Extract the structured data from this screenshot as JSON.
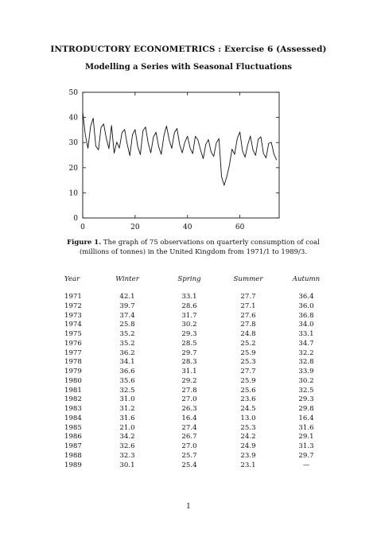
{
  "document": {
    "title": "INTRODUCTORY ECONOMETRICS : Exercise 6 (Assessed)",
    "subtitle": "Modelling a Series with Seasonal Fluctuations",
    "figure_label": "Figure 1.",
    "caption": "The graph of 75 observations on quarterly consumption of coal (millions of tonnes) in the United Kingdom from 1971/1 to 1989/3.",
    "page_number": "1"
  },
  "chart_data": {
    "type": "line",
    "title": "",
    "xlabel": "",
    "ylabel": "",
    "xlim": [
      0,
      75
    ],
    "ylim": [
      0,
      50
    ],
    "x_ticks": [
      "0",
      "20",
      "40",
      "60"
    ],
    "y_ticks": [
      "0",
      "10",
      "20",
      "30",
      "40",
      "50"
    ],
    "grid": false,
    "series": [
      {
        "values": [
          42.1,
          33.1,
          27.7,
          36.4,
          39.7,
          28.6,
          27.1,
          36.0,
          37.4,
          31.7,
          27.6,
          36.8,
          25.8,
          30.2,
          27.8,
          34.0,
          35.2,
          29.3,
          24.8,
          33.1,
          35.2,
          28.5,
          25.2,
          34.7,
          36.2,
          29.7,
          25.9,
          32.2,
          34.1,
          28.3,
          25.3,
          32.8,
          36.6,
          31.1,
          27.7,
          33.9,
          35.6,
          29.2,
          25.9,
          30.2,
          32.5,
          27.8,
          25.6,
          32.5,
          31.0,
          27.0,
          23.6,
          29.3,
          31.2,
          26.3,
          24.5,
          29.8,
          31.6,
          16.4,
          13.0,
          16.4,
          21.0,
          27.4,
          25.3,
          31.6,
          34.2,
          26.7,
          24.2,
          29.1,
          32.6,
          27.0,
          24.9,
          31.3,
          32.3,
          25.7,
          23.9,
          29.7,
          30.1,
          25.4,
          23.1
        ]
      }
    ]
  },
  "table": {
    "headers": [
      "Year",
      "Winter",
      "Spring",
      "Summer",
      "Autumn"
    ],
    "rows": [
      [
        "1971",
        "42.1",
        "33.1",
        "27.7",
        "36.4"
      ],
      [
        "1972",
        "39.7",
        "28.6",
        "27.1",
        "36.0"
      ],
      [
        "1973",
        "37.4",
        "31.7",
        "27.6",
        "36.8"
      ],
      [
        "1974",
        "25.8",
        "30.2",
        "27.8",
        "34.0"
      ],
      [
        "1975",
        "35.2",
        "29.3",
        "24.8",
        "33.1"
      ],
      [
        "1976",
        "35.2",
        "28.5",
        "25.2",
        "34.7"
      ],
      [
        "1977",
        "36.2",
        "29.7",
        "25.9",
        "32.2"
      ],
      [
        "1978",
        "34.1",
        "28.3",
        "25.3",
        "32.8"
      ],
      [
        "1979",
        "36.6",
        "31.1",
        "27.7",
        "33.9"
      ],
      [
        "1980",
        "35.6",
        "29.2",
        "25.9",
        "30.2"
      ],
      [
        "1981",
        "32.5",
        "27.8",
        "25.6",
        "32.5"
      ],
      [
        "1982",
        "31.0",
        "27.0",
        "23.6",
        "29.3"
      ],
      [
        "1983",
        "31.2",
        "26.3",
        "24.5",
        "29.8"
      ],
      [
        "1984",
        "31.6",
        "16.4",
        "13.0",
        "16.4"
      ],
      [
        "1985",
        "21.0",
        "27.4",
        "25.3",
        "31.6"
      ],
      [
        "1986",
        "34.2",
        "26.7",
        "24.2",
        "29.1"
      ],
      [
        "1987",
        "32.6",
        "27.0",
        "24.9",
        "31.3"
      ],
      [
        "1988",
        "32.3",
        "25.7",
        "23.9",
        "29.7"
      ],
      [
        "1989",
        "30.1",
        "25.4",
        "23.1",
        "—"
      ]
    ]
  }
}
